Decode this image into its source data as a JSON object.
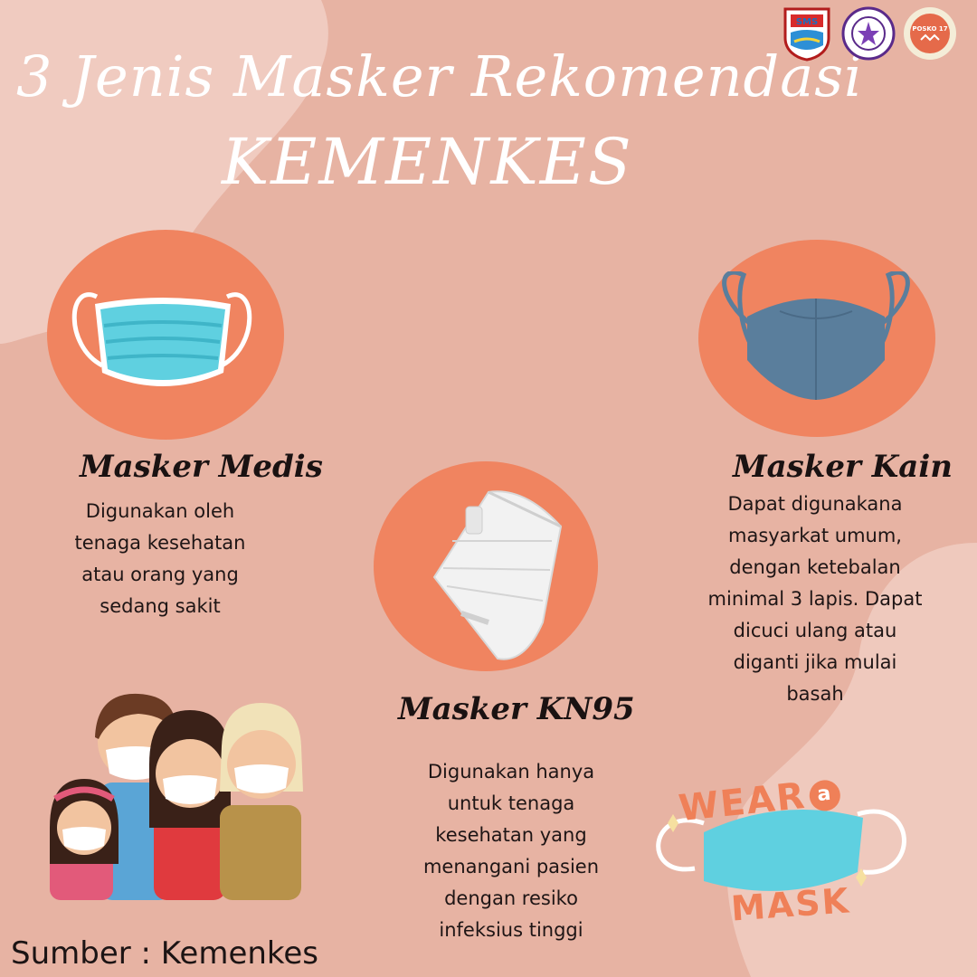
{
  "title": {
    "line1": "3 Jenis Masker Rekomendasi",
    "line2": "KEMENKES"
  },
  "logos": [
    "government-emblem-icon",
    "university-seal-icon",
    "posko-17-badge-icon"
  ],
  "masks": [
    {
      "name": "Masker Medis",
      "description": [
        "Digunakan oleh",
        "tenaga kesehatan",
        "atau orang yang",
        "sedang sakit"
      ]
    },
    {
      "name": "Masker KN95",
      "description": [
        "Digunakan hanya",
        "untuk tenaga",
        "kesehatan yang",
        "menangani pasien",
        "dengan resiko",
        "infeksius tinggi"
      ]
    },
    {
      "name": "Masker Kain",
      "description": [
        "Dapat digunakana",
        "masyarkat umum,",
        "dengan ketebalan",
        "minimal 3 lapis. Dapat",
        "dicuci ulang atau",
        "diganti jika mulai",
        "basah"
      ]
    }
  ],
  "badge": {
    "wear": "WEAR",
    "a": "a",
    "mask": "MASK"
  },
  "source": "Sumber : Kemenkes",
  "colors": {
    "background": "#e7b3a3",
    "accent_circle": "#f08460",
    "medical_mask": "#5fd0e0",
    "cloth_mask": "#5a7e9c"
  }
}
